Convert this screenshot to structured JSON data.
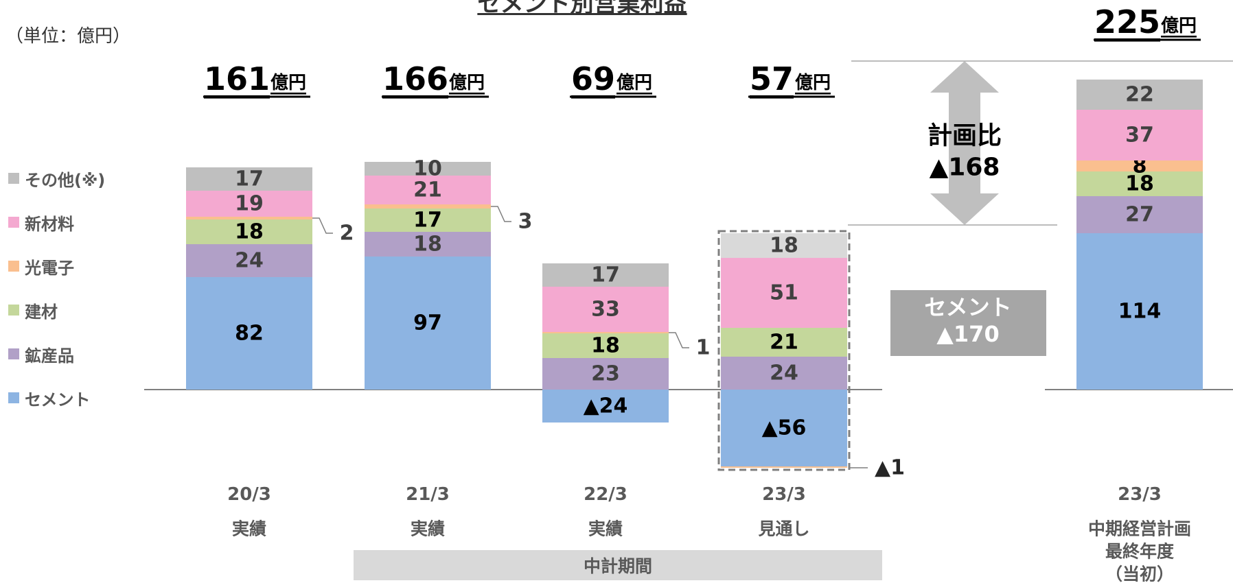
{
  "header": {
    "title_partial": "セメント別営業利益",
    "unit": "（単位：億円）"
  },
  "legend": [
    {
      "name": "その他(※)",
      "color": "#bfbfbf"
    },
    {
      "name": "新材料",
      "color": "#f4a9d0"
    },
    {
      "name": "光電子",
      "color": "#fabf8f"
    },
    {
      "name": "建材",
      "color": "#c4d79b"
    },
    {
      "name": "鉱産品",
      "color": "#b1a0c7"
    },
    {
      "name": "セメント",
      "color": "#8db4e2"
    }
  ],
  "chart_data": {
    "type": "bar",
    "stacked": true,
    "categories": [
      "20/3",
      "21/3",
      "22/3",
      "23/3",
      "23/3"
    ],
    "category_sublabels": [
      "実績",
      "実績",
      "実績",
      "見通し",
      "中期経営計画\n最終年度\n（当初）"
    ],
    "totals": [
      "161",
      "166",
      "69",
      "57",
      "225"
    ],
    "total_unit": "億円",
    "series": [
      {
        "name": "セメント",
        "color": "#8db4e2",
        "values": [
          82,
          97,
          -24,
          -56,
          114
        ],
        "labels": [
          "82",
          "97",
          "▲24",
          "▲56",
          "114"
        ]
      },
      {
        "name": "鉱産品",
        "color": "#b1a0c7",
        "values": [
          24,
          18,
          23,
          24,
          27
        ],
        "labels": [
          "24",
          "18",
          "23",
          "24",
          "27"
        ]
      },
      {
        "name": "建材",
        "color": "#c4d79b",
        "values": [
          18,
          17,
          18,
          21,
          18
        ],
        "labels": [
          "18",
          "17",
          "18",
          "21",
          "18"
        ]
      },
      {
        "name": "光電子",
        "color": "#fabf8f",
        "values": [
          2,
          3,
          1,
          -1,
          8
        ],
        "labels": [
          "2",
          "3",
          "1",
          "▲1",
          "8"
        ]
      },
      {
        "name": "新材料",
        "color": "#f4a9d0",
        "values": [
          19,
          21,
          33,
          51,
          37
        ],
        "labels": [
          "19",
          "21",
          "33",
          "51",
          "37"
        ]
      },
      {
        "name": "その他(※)",
        "color": "#bfbfbf",
        "values": [
          17,
          10,
          17,
          18,
          22
        ],
        "labels": [
          "17",
          "10",
          "17",
          "18",
          "22"
        ]
      }
    ],
    "annotations": {
      "plan_diff_title": "計画比",
      "plan_diff_value": "▲168",
      "cement_diff_title": "セメント",
      "cement_diff_value": "▲170"
    },
    "period_band": "中計期間"
  }
}
